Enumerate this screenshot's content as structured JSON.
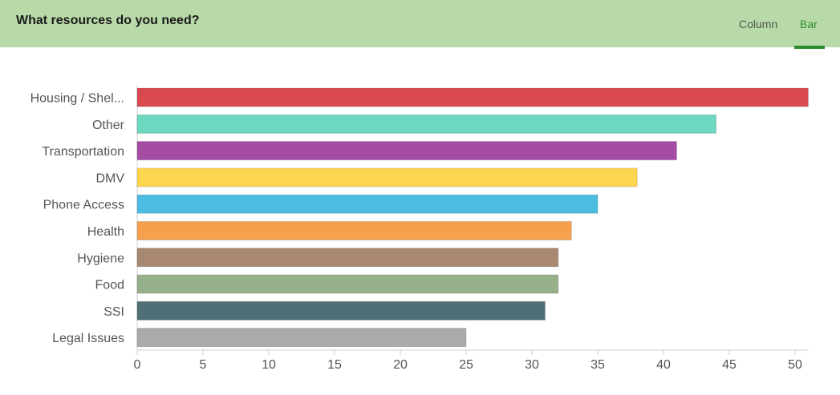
{
  "header": {
    "title": "What resources do you need?",
    "toggle_column": "Column",
    "toggle_bar": "Bar",
    "selected_view": "Bar"
  },
  "colors": {
    "header_bg": "#b8daa8",
    "active_toggle": "#2e8b2e"
  },
  "chart_data": {
    "type": "bar",
    "orientation": "horizontal",
    "categories": [
      "Housing / Shel...",
      "Other",
      "Transportation",
      "DMV",
      "Phone Access",
      "Health",
      "Hygiene",
      "Food",
      "SSI",
      "Legal Issues"
    ],
    "values": [
      51,
      44,
      41,
      38,
      35,
      33,
      32,
      32,
      31,
      25
    ],
    "colors": [
      "#d94a50",
      "#6cd8c0",
      "#a54ca5",
      "#fdd650",
      "#4cbce2",
      "#f6a04e",
      "#a88870",
      "#96b08a",
      "#506e76",
      "#aaaaaa"
    ],
    "xlim": [
      0,
      51
    ],
    "xticks": [
      0,
      5,
      10,
      15,
      20,
      25,
      30,
      35,
      40,
      45,
      50
    ],
    "grid": false,
    "legend": "none"
  }
}
